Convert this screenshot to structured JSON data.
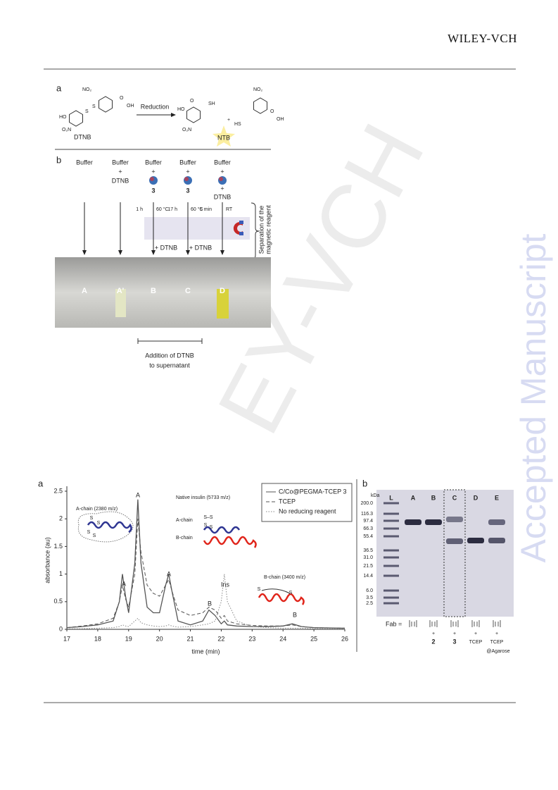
{
  "header": {
    "publisher": "WILEY-VCH"
  },
  "watermarks": {
    "side": "Accepted Manuscript",
    "diagonal": "EY-VCH"
  },
  "figure1": {
    "panel_a": {
      "label": "a",
      "reactant": "DTNB",
      "arrow": "Reduction",
      "product": "NTB",
      "atoms": [
        "NO₂",
        "S",
        "S",
        "O",
        "OH",
        "HO",
        "O₂N",
        "NO₂",
        "SH",
        "O",
        "HO",
        "O₂N",
        "+",
        "HS",
        "O",
        "OH"
      ]
    },
    "panel_b": {
      "label": "b",
      "columns": [
        {
          "top": "Buffer"
        },
        {
          "top": "Buffer",
          "plus": "+",
          "reagent": "DTNB"
        },
        {
          "top": "Buffer",
          "plus": "+",
          "particle": "3"
        },
        {
          "top": "Buffer",
          "plus": "+",
          "particle": "3"
        },
        {
          "top": "Buffer",
          "plus": "+",
          "plus2": "+",
          "reagent": "DTNB"
        }
      ],
      "conditions": [
        "1 h",
        "60 °C",
        "17 h",
        "60 °C",
        "5 min",
        "RT"
      ],
      "additions": [
        "+ DTNB",
        "+ DTNB"
      ],
      "separation": [
        "Separation of the",
        "magnetic reagent"
      ],
      "cuvettes": [
        "A",
        "A'",
        "B",
        "C",
        "D"
      ],
      "bracket": [
        "Addition of DTNB",
        "to supernatant"
      ]
    }
  },
  "figure2": {
    "panel_a": {
      "label": "a",
      "type": "line",
      "xlabel": "time (min)",
      "ylabel": "absorbance (au)",
      "xlim": [
        17,
        26
      ],
      "ylim": [
        0,
        2.5
      ],
      "xticks": [
        17,
        18,
        19,
        20,
        21,
        22,
        23,
        24,
        25,
        26
      ],
      "yticks": [
        0,
        0.5,
        1,
        1.5,
        2,
        2.5
      ],
      "x": [
        17,
        17.5,
        18,
        18.5,
        18.7,
        18.8,
        18.9,
        19.0,
        19.2,
        19.3,
        19.4,
        19.6,
        19.8,
        20.0,
        20.2,
        20.3,
        20.4,
        20.6,
        21.0,
        21.4,
        21.6,
        21.8,
        22.0,
        22.1,
        22.2,
        22.5,
        23,
        23.5,
        24,
        24.3,
        24.6,
        25,
        26
      ],
      "series": [
        {
          "name": "C/Co@PEGMA-TCEP 3",
          "color": "#555555",
          "dash": "solid",
          "values": [
            0.03,
            0.05,
            0.08,
            0.15,
            0.5,
            1.0,
            0.6,
            0.3,
            1.2,
            2.35,
            1.2,
            0.4,
            0.3,
            0.3,
            0.8,
            1.0,
            0.7,
            0.15,
            0.08,
            0.15,
            0.35,
            0.25,
            0.1,
            0.15,
            0.08,
            0.06,
            0.05,
            0.05,
            0.06,
            0.1,
            0.05,
            0.03,
            0.02
          ]
        },
        {
          "name": "TCEP",
          "color": "#555555",
          "dash": "dashed",
          "values": [
            0.03,
            0.06,
            0.1,
            0.2,
            0.5,
            0.8,
            0.55,
            0.4,
            1.0,
            2.0,
            1.4,
            0.8,
            0.65,
            0.6,
            0.8,
            0.9,
            0.7,
            0.35,
            0.25,
            0.3,
            0.4,
            0.35,
            0.2,
            0.25,
            0.15,
            0.1,
            0.07,
            0.06,
            0.06,
            0.08,
            0.05,
            0.03,
            0.02
          ]
        },
        {
          "name": "No reducing reagent",
          "color": "#888888",
          "dash": "dotted",
          "values": [
            0.01,
            0.01,
            0.02,
            0.03,
            0.05,
            0.08,
            0.06,
            0.05,
            0.15,
            0.2,
            0.12,
            0.08,
            0.06,
            0.05,
            0.06,
            0.08,
            0.06,
            0.04,
            0.05,
            0.08,
            0.1,
            0.15,
            0.5,
            1.0,
            0.5,
            0.15,
            0.05,
            0.03,
            0.02,
            0.02,
            0.02,
            0.01,
            0.01
          ]
        }
      ],
      "peak_labels": [
        "A",
        "A",
        "A",
        "B",
        "Ins",
        "B"
      ],
      "annotations": [
        "A-chain (2380 m/z)",
        "Native insulin (5733 m/z)",
        "A-chain",
        "B-chain",
        "B-chain (3400 m/z)"
      ],
      "sulfur_labels": [
        "S–S",
        "S",
        "S",
        "S",
        "S",
        "S",
        "S",
        "S",
        "S"
      ]
    },
    "panel_b": {
      "label": "b",
      "unit": "kDa",
      "ladder": [
        "200.0",
        "116.3",
        "97.4",
        "66.3",
        "55.4",
        "36.5",
        "31.0",
        "21.5",
        "14.4",
        "6.0",
        "3.5",
        "2.5"
      ],
      "lanes": [
        "L",
        "A",
        "B",
        "C",
        "D",
        "E"
      ],
      "fab": "Fab =",
      "treatments": [
        [
          "+",
          "2"
        ],
        [
          "+",
          "3"
        ],
        [
          "+",
          "TCEP"
        ],
        [
          "+",
          "TCEP",
          "@Agarose"
        ]
      ]
    }
  }
}
